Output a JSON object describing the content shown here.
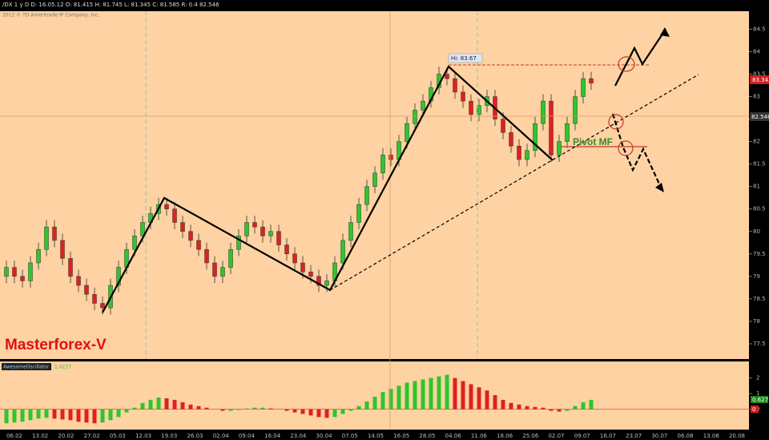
{
  "chart_data": {
    "type": "candlestick",
    "header": "/DX 1 y D   D: 16.05.12   O: 81.415   H: 81.745   L: 81.345   C: 81.585   R: 0.4   82.546",
    "copyright": "2012 © TD Ameritrade IP Company, Inc.",
    "ylim": [
      77.16,
      84.9
    ],
    "yticks": [
      77.5,
      78,
      78.5,
      79,
      79.5,
      80,
      80.5,
      81,
      81.5,
      82,
      82.5,
      83,
      83.5,
      84,
      84.5
    ],
    "ohlc": [
      [
        79.0,
        79.35,
        78.85,
        79.2
      ],
      [
        79.2,
        79.35,
        78.85,
        79.0
      ],
      [
        79.0,
        79.15,
        78.75,
        78.9
      ],
      [
        78.9,
        79.45,
        78.75,
        79.3
      ],
      [
        79.3,
        79.75,
        79.15,
        79.6
      ],
      [
        79.6,
        80.25,
        79.45,
        80.1
      ],
      [
        80.1,
        80.25,
        79.65,
        79.8
      ],
      [
        79.8,
        79.95,
        79.25,
        79.4
      ],
      [
        79.4,
        79.55,
        78.85,
        79.0
      ],
      [
        79.0,
        79.15,
        78.65,
        78.8
      ],
      [
        78.8,
        78.95,
        78.45,
        78.6
      ],
      [
        78.6,
        78.75,
        78.25,
        78.4
      ],
      [
        78.4,
        78.55,
        78.15,
        78.3
      ],
      [
        78.3,
        78.95,
        78.15,
        78.8
      ],
      [
        78.8,
        79.35,
        78.65,
        79.2
      ],
      [
        79.2,
        79.75,
        79.05,
        79.6
      ],
      [
        79.6,
        80.05,
        79.45,
        79.9
      ],
      [
        79.9,
        80.35,
        79.75,
        80.2
      ],
      [
        80.2,
        80.55,
        80.05,
        80.4
      ],
      [
        80.4,
        80.75,
        80.25,
        80.6
      ],
      [
        80.6,
        80.75,
        80.35,
        80.5
      ],
      [
        80.5,
        80.65,
        80.05,
        80.2
      ],
      [
        80.2,
        80.35,
        79.85,
        80.0
      ],
      [
        80.0,
        80.15,
        79.65,
        79.8
      ],
      [
        79.8,
        79.95,
        79.45,
        79.6
      ],
      [
        79.6,
        79.75,
        79.15,
        79.3
      ],
      [
        79.3,
        79.45,
        78.85,
        79.0
      ],
      [
        79.0,
        79.35,
        78.85,
        79.2
      ],
      [
        79.2,
        79.75,
        79.05,
        79.6
      ],
      [
        79.6,
        80.05,
        79.45,
        79.9
      ],
      [
        79.9,
        80.35,
        79.75,
        80.2
      ],
      [
        80.2,
        80.35,
        79.95,
        80.1
      ],
      [
        80.1,
        80.25,
        79.75,
        79.9
      ],
      [
        79.9,
        80.15,
        79.75,
        80.0
      ],
      [
        80.0,
        80.15,
        79.55,
        79.7
      ],
      [
        79.7,
        79.85,
        79.35,
        79.5
      ],
      [
        79.5,
        79.65,
        79.15,
        79.3
      ],
      [
        79.3,
        79.45,
        78.95,
        79.1
      ],
      [
        79.1,
        79.25,
        78.85,
        79.0
      ],
      [
        79.0,
        79.15,
        78.65,
        78.8
      ],
      [
        78.8,
        79.05,
        78.65,
        78.9
      ],
      [
        78.9,
        79.45,
        78.75,
        79.3
      ],
      [
        79.3,
        79.95,
        79.15,
        79.8
      ],
      [
        79.8,
        80.35,
        79.65,
        80.2
      ],
      [
        80.2,
        80.75,
        80.05,
        80.6
      ],
      [
        80.6,
        81.15,
        80.45,
        81.0
      ],
      [
        81.0,
        81.45,
        80.85,
        81.3
      ],
      [
        81.3,
        81.85,
        81.15,
        81.7
      ],
      [
        81.7,
        81.85,
        81.45,
        81.6
      ],
      [
        81.6,
        82.15,
        81.45,
        82.0
      ],
      [
        82.0,
        82.55,
        81.85,
        82.4
      ],
      [
        82.4,
        82.85,
        82.25,
        82.7
      ],
      [
        82.7,
        83.05,
        82.55,
        82.9
      ],
      [
        82.9,
        83.35,
        82.75,
        83.2
      ],
      [
        83.2,
        83.67,
        83.05,
        83.5
      ],
      [
        83.5,
        83.65,
        83.25,
        83.4
      ],
      [
        83.4,
        83.55,
        82.95,
        83.1
      ],
      [
        83.1,
        83.25,
        82.75,
        82.9
      ],
      [
        82.9,
        83.05,
        82.45,
        82.6
      ],
      [
        82.6,
        82.95,
        82.45,
        82.8
      ],
      [
        82.8,
        83.15,
        82.65,
        83.0
      ],
      [
        83.0,
        83.15,
        82.35,
        82.5
      ],
      [
        82.5,
        82.65,
        82.05,
        82.2
      ],
      [
        82.2,
        82.35,
        81.75,
        81.9
      ],
      [
        81.9,
        82.05,
        81.45,
        81.6
      ],
      [
        81.6,
        81.95,
        81.45,
        81.8
      ],
      [
        81.8,
        82.55,
        81.65,
        82.4
      ],
      [
        82.4,
        83.05,
        82.25,
        82.9
      ],
      [
        82.9,
        83.05,
        81.55,
        81.7
      ],
      [
        81.7,
        82.15,
        81.55,
        82.0
      ],
      [
        82.0,
        82.55,
        81.85,
        82.4
      ],
      [
        82.4,
        83.15,
        82.25,
        83.0
      ],
      [
        83.0,
        83.55,
        82.85,
        83.4
      ],
      [
        83.4,
        83.55,
        83.15,
        83.3
      ]
    ],
    "up_color": "#2bc72b",
    "down_color": "#e02020",
    "date_labels": [
      "06.02",
      "13.02",
      "20.02",
      "27.02",
      "05.03",
      "12.03",
      "19.03",
      "26.03",
      "02.04",
      "09.04",
      "16.04",
      "23.04",
      "30.04",
      "07.05",
      "14.05",
      "16.05",
      "28.05",
      "04.06",
      "11.06",
      "18.06",
      "25.06",
      "02.07",
      "09.07",
      "16.07",
      "23.07",
      "30.07",
      "06.08",
      "13.08",
      "20.08"
    ],
    "last_price_label": "83.34",
    "cursor_price_label": "82.546",
    "high_label": "Hi: 83.67",
    "pivot_label": "Pivot MF",
    "brand": "Masterforex-V",
    "oscillator": {
      "name": "AwesomeOscillator",
      "value_label": "1.0217",
      "ylim": [
        -1.3,
        2.49
      ],
      "yticks": [
        0,
        1,
        2
      ],
      "last_label": "0.627",
      "zero_label": "0",
      "values": [
        -0.9,
        -0.85,
        -0.8,
        -0.7,
        -0.6,
        -0.55,
        -0.6,
        -0.65,
        -0.7,
        -0.8,
        -0.85,
        -0.9,
        -0.85,
        -0.7,
        -0.5,
        -0.2,
        0.1,
        0.4,
        0.6,
        0.75,
        0.7,
        0.6,
        0.45,
        0.3,
        0.2,
        0.1,
        0.0,
        -0.1,
        -0.1,
        -0.05,
        0.05,
        0.1,
        0.1,
        0.05,
        0.0,
        -0.1,
        -0.2,
        -0.3,
        -0.4,
        -0.5,
        -0.55,
        -0.5,
        -0.3,
        -0.1,
        0.2,
        0.5,
        0.8,
        1.1,
        1.3,
        1.5,
        1.7,
        1.8,
        1.9,
        2.0,
        2.1,
        2.2,
        2.0,
        1.8,
        1.6,
        1.4,
        1.2,
        0.9,
        0.6,
        0.4,
        0.3,
        0.2,
        0.15,
        0.1,
        -0.1,
        -0.15,
        -0.1,
        0.2,
        0.45,
        0.6
      ]
    }
  }
}
